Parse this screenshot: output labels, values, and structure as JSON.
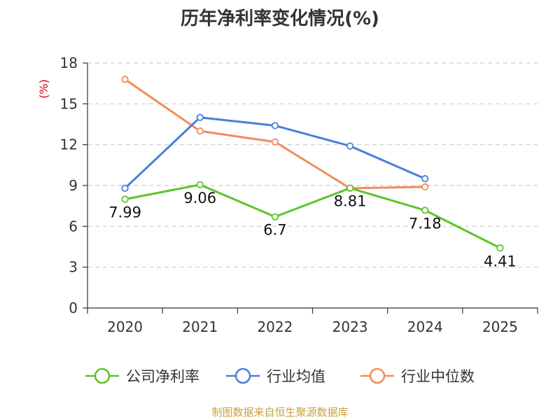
{
  "chart_data": {
    "type": "line",
    "title": "历年净利率变化情况(%)",
    "y_unit": "(%)",
    "categories": [
      "2020",
      "2021",
      "2022",
      "2023",
      "2024",
      "2025"
    ],
    "ylim": [
      0,
      18
    ],
    "yticks": [
      0,
      3,
      6,
      9,
      12,
      15,
      18
    ],
    "ytick_labels": [
      "0",
      "3",
      "6",
      "9",
      "12",
      "15",
      "18"
    ],
    "grid": true,
    "legend_position": "bottom",
    "series": [
      {
        "name": "公司净利率",
        "color": "#5cc52a",
        "values": [
          7.99,
          9.06,
          6.7,
          8.81,
          7.18,
          4.41
        ],
        "labels": [
          "7.99",
          "9.06",
          "6.7",
          "8.81",
          "7.18",
          "4.41"
        ]
      },
      {
        "name": "行业均值",
        "color": "#4a7fd8",
        "values": [
          8.8,
          14.0,
          13.4,
          11.9,
          9.5,
          null
        ]
      },
      {
        "name": "行业中位数",
        "color": "#f28c5a",
        "values": [
          16.8,
          13.0,
          12.2,
          8.8,
          8.9,
          null
        ]
      }
    ],
    "source": "制图数据来自恒生聚源数据库"
  },
  "colors": {
    "axis": "#333333",
    "grid": "#cccccc",
    "unit": "#d9000d"
  }
}
